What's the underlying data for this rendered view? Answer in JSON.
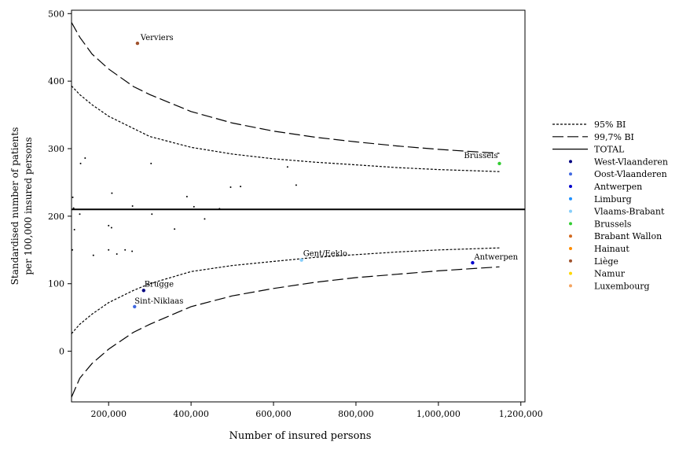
{
  "chart_data": {
    "type": "scatter",
    "xlabel": "Number of insured persons",
    "ylabel": [
      "Standardised number of patients",
      "per 100,000 insured persons"
    ],
    "xlim": [
      110000,
      1210000
    ],
    "ylim": [
      -75,
      505
    ],
    "x_ticks": [
      200000,
      400000,
      600000,
      800000,
      1000000,
      1200000
    ],
    "x_tick_labels": [
      "200,000",
      "400,000",
      "600,000",
      "800,000",
      "1,000,000",
      "1,200,000"
    ],
    "y_ticks": [
      0,
      100,
      200,
      300,
      400,
      500
    ],
    "y_tick_labels": [
      "0",
      "100",
      "200",
      "300",
      "400",
      "500"
    ],
    "total": 210,
    "legend": {
      "placement": "right",
      "lines": [
        {
          "label": "95% BI",
          "style": "dotted"
        },
        {
          "label": "99,7% BI",
          "style": "dashed"
        },
        {
          "label": "TOTAL",
          "style": "solid"
        }
      ],
      "provinces": [
        {
          "label": "West-Vlaanderen",
          "color": "#000080"
        },
        {
          "label": "Oost-Vlaanderen",
          "color": "#4169e1"
        },
        {
          "label": "Antwerpen",
          "color": "#0000cd"
        },
        {
          "label": "Limburg",
          "color": "#1e90ff"
        },
        {
          "label": "Vlaams-Brabant",
          "color": "#87cefa"
        },
        {
          "label": "Brussels",
          "color": "#32cd32"
        },
        {
          "label": "Brabant Wallon",
          "color": "#d2691e"
        },
        {
          "label": "Hainaut",
          "color": "#ff8c00"
        },
        {
          "label": "Liège",
          "color": "#a0522d"
        },
        {
          "label": "Namur",
          "color": "#ffd700"
        },
        {
          "label": "Luxembourg",
          "color": "#f4a460"
        }
      ]
    },
    "labeled_points": [
      {
        "label": "Verviers",
        "x": 270000,
        "y": 456,
        "color": "#a0522d"
      },
      {
        "label": "Brussels",
        "x": 1148000,
        "y": 278,
        "color": "#32cd32"
      },
      {
        "label": "Gent/Eeklo",
        "x": 668000,
        "y": 135,
        "color": "#87cefa"
      },
      {
        "label": "Antwerpen",
        "x": 1083000,
        "y": 131,
        "color": "#0000cd"
      },
      {
        "label": "Brugge",
        "x": 285000,
        "y": 90,
        "color": "#000080"
      },
      {
        "label": "Sint-Niklaas",
        "x": 263000,
        "y": 66,
        "color": "#4169e1"
      }
    ],
    "small_points": [
      [
        113000,
        228
      ],
      [
        115000,
        212
      ],
      [
        117000,
        180
      ],
      [
        112000,
        150
      ],
      [
        130000,
        203
      ],
      [
        132000,
        278
      ],
      [
        143000,
        286
      ],
      [
        163000,
        142
      ],
      [
        200000,
        186
      ],
      [
        200000,
        150
      ],
      [
        207000,
        183
      ],
      [
        208000,
        234
      ],
      [
        220000,
        144
      ],
      [
        240000,
        150
      ],
      [
        257000,
        148
      ],
      [
        258000,
        215
      ],
      [
        303000,
        278
      ],
      [
        305000,
        203
      ],
      [
        360000,
        181
      ],
      [
        390000,
        229
      ],
      [
        407000,
        214
      ],
      [
        433000,
        196
      ],
      [
        469000,
        211
      ],
      [
        496000,
        243
      ],
      [
        520000,
        244
      ],
      [
        634000,
        273
      ],
      [
        655000,
        246
      ]
    ],
    "ci95_upper": [
      [
        110000,
        393
      ],
      [
        130000,
        380
      ],
      [
        160000,
        365
      ],
      [
        200000,
        348
      ],
      [
        260000,
        330
      ],
      [
        300000,
        318
      ],
      [
        400000,
        302
      ],
      [
        500000,
        292
      ],
      [
        600000,
        285
      ],
      [
        700000,
        280
      ],
      [
        800000,
        276
      ],
      [
        900000,
        272
      ],
      [
        1000000,
        269
      ],
      [
        1148000,
        266
      ]
    ],
    "ci95_lower": [
      [
        110000,
        26
      ],
      [
        130000,
        40
      ],
      [
        160000,
        55
      ],
      [
        200000,
        72
      ],
      [
        260000,
        90
      ],
      [
        300000,
        100
      ],
      [
        400000,
        118
      ],
      [
        500000,
        127
      ],
      [
        600000,
        133
      ],
      [
        700000,
        139
      ],
      [
        800000,
        143
      ],
      [
        900000,
        147
      ],
      [
        1000000,
        150
      ],
      [
        1148000,
        153
      ]
    ],
    "ci997_upper": [
      [
        110000,
        487
      ],
      [
        130000,
        465
      ],
      [
        160000,
        440
      ],
      [
        200000,
        418
      ],
      [
        260000,
        392
      ],
      [
        300000,
        380
      ],
      [
        400000,
        355
      ],
      [
        500000,
        338
      ],
      [
        600000,
        326
      ],
      [
        700000,
        317
      ],
      [
        800000,
        310
      ],
      [
        900000,
        304
      ],
      [
        1000000,
        299
      ],
      [
        1148000,
        293
      ]
    ],
    "ci997_lower": [
      [
        110000,
        -68
      ],
      [
        130000,
        -40
      ],
      [
        160000,
        -18
      ],
      [
        200000,
        3
      ],
      [
        260000,
        28
      ],
      [
        300000,
        40
      ],
      [
        400000,
        66
      ],
      [
        500000,
        82
      ],
      [
        600000,
        93
      ],
      [
        700000,
        102
      ],
      [
        800000,
        109
      ],
      [
        900000,
        114
      ],
      [
        1000000,
        119
      ],
      [
        1148000,
        125
      ]
    ]
  }
}
